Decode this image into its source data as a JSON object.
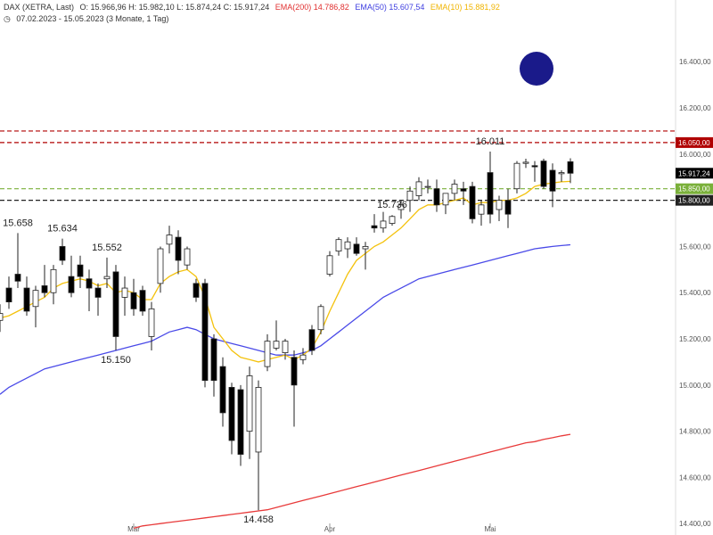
{
  "header": {
    "line1_symbol": "DAX (XETRA, Last)",
    "line1_ohlc": "O: 15.966,96  H: 15.982,10  L: 15.874,24  C: 15.917,24",
    "ema200_label": "EMA(200)  14.786,82",
    "ema50_label": "EMA(50)  15.607,54",
    "ema10_label": "EMA(10)  15.881,92",
    "line2": "07.02.2023 - 15.05.2023  (3 Monate, 1 Tag)"
  },
  "colors": {
    "up": "#ffffff",
    "down": "#000000",
    "ema200": "#e83a3a",
    "ema50": "#4a4ae8",
    "ema10": "#f4c20d",
    "resist1": "#b00000",
    "resist2": "#b00000",
    "support_green": "#7ab03a",
    "support_black": "#222222",
    "marker": "#1a1a8a"
  },
  "chart_data": {
    "type": "candlestick",
    "ylim": [
      14380,
      16460
    ],
    "yticks": [
      "16.400,00",
      "16.200,00",
      "16.000,00",
      "15.800,00",
      "15.600,00",
      "15.400,00",
      "15.200,00",
      "15.000,00",
      "14.800,00",
      "14.600,00",
      "14.400,00"
    ],
    "ytick_values": [
      16400,
      16200,
      16000,
      15800,
      15600,
      15400,
      15200,
      15000,
      14800,
      14600,
      14400
    ],
    "x_month_labels": [
      {
        "label": "Mär",
        "index": 15
      },
      {
        "label": "Apr",
        "index": 37
      },
      {
        "label": "Mai",
        "index": 55
      }
    ],
    "candles": [
      {
        "o": 15280,
        "h": 15350,
        "l": 15230,
        "c": 15310
      },
      {
        "o": 15420,
        "h": 15470,
        "l": 15330,
        "c": 15360
      },
      {
        "o": 15480,
        "h": 15658,
        "l": 15420,
        "c": 15450
      },
      {
        "o": 15420,
        "h": 15470,
        "l": 15300,
        "c": 15320
      },
      {
        "o": 15340,
        "h": 15430,
        "l": 15250,
        "c": 15410
      },
      {
        "o": 15430,
        "h": 15520,
        "l": 15380,
        "c": 15400
      },
      {
        "o": 15400,
        "h": 15520,
        "l": 15350,
        "c": 15500
      },
      {
        "o": 15600,
        "h": 15634,
        "l": 15520,
        "c": 15540
      },
      {
        "o": 15470,
        "h": 15560,
        "l": 15380,
        "c": 15400
      },
      {
        "o": 15520,
        "h": 15560,
        "l": 15420,
        "c": 15470
      },
      {
        "o": 15460,
        "h": 15500,
        "l": 15320,
        "c": 15420
      },
      {
        "o": 15420,
        "h": 15440,
        "l": 15300,
        "c": 15380
      },
      {
        "o": 15460,
        "h": 15552,
        "l": 15420,
        "c": 15470
      },
      {
        "o": 15490,
        "h": 15520,
        "l": 15150,
        "c": 15210
      },
      {
        "o": 15380,
        "h": 15470,
        "l": 15300,
        "c": 15420
      },
      {
        "o": 15400,
        "h": 15460,
        "l": 15300,
        "c": 15330
      },
      {
        "o": 15410,
        "h": 15430,
        "l": 15300,
        "c": 15320
      },
      {
        "o": 15210,
        "h": 15360,
        "l": 15150,
        "c": 15330
      },
      {
        "o": 15440,
        "h": 15600,
        "l": 15400,
        "c": 15590
      },
      {
        "o": 15610,
        "h": 15690,
        "l": 15570,
        "c": 15650
      },
      {
        "o": 15640,
        "h": 15670,
        "l": 15480,
        "c": 15540
      },
      {
        "o": 15520,
        "h": 15600,
        "l": 15500,
        "c": 15590
      },
      {
        "o": 15440,
        "h": 15460,
        "l": 15360,
        "c": 15380
      },
      {
        "o": 15440,
        "h": 15460,
        "l": 14990,
        "c": 15020
      },
      {
        "o": 15200,
        "h": 15220,
        "l": 14950,
        "c": 15020
      },
      {
        "o": 15080,
        "h": 15120,
        "l": 14820,
        "c": 14880
      },
      {
        "o": 14990,
        "h": 15010,
        "l": 14700,
        "c": 14760
      },
      {
        "o": 14980,
        "h": 15000,
        "l": 14650,
        "c": 14700
      },
      {
        "o": 14800,
        "h": 15080,
        "l": 14680,
        "c": 15040
      },
      {
        "o": 14710,
        "h": 15020,
        "l": 14458,
        "c": 14990
      },
      {
        "o": 15080,
        "h": 15220,
        "l": 15060,
        "c": 15190
      },
      {
        "o": 15160,
        "h": 15280,
        "l": 15150,
        "c": 15190
      },
      {
        "o": 15140,
        "h": 15200,
        "l": 15110,
        "c": 15190
      },
      {
        "o": 15120,
        "h": 15150,
        "l": 14820,
        "c": 15000
      },
      {
        "o": 15110,
        "h": 15160,
        "l": 15090,
        "c": 15130
      },
      {
        "o": 15240,
        "h": 15260,
        "l": 15130,
        "c": 15150
      },
      {
        "o": 15240,
        "h": 15350,
        "l": 15220,
        "c": 15340
      },
      {
        "o": 15480,
        "h": 15580,
        "l": 15470,
        "c": 15560
      },
      {
        "o": 15580,
        "h": 15640,
        "l": 15560,
        "c": 15630
      },
      {
        "o": 15590,
        "h": 15640,
        "l": 15550,
        "c": 15620
      },
      {
        "o": 15610,
        "h": 15640,
        "l": 15560,
        "c": 15570
      },
      {
        "o": 15590,
        "h": 15620,
        "l": 15500,
        "c": 15600
      },
      {
        "o": 15690,
        "h": 15740,
        "l": 15660,
        "c": 15680
      },
      {
        "o": 15680,
        "h": 15750,
        "l": 15660,
        "c": 15710
      },
      {
        "o": 15700,
        "h": 15736,
        "l": 15690,
        "c": 15730
      },
      {
        "o": 15760,
        "h": 15800,
        "l": 15720,
        "c": 15780
      },
      {
        "o": 15800,
        "h": 15860,
        "l": 15750,
        "c": 15840
      },
      {
        "o": 15820,
        "h": 15900,
        "l": 15800,
        "c": 15880
      },
      {
        "o": 15860,
        "h": 15890,
        "l": 15830,
        "c": 15860
      },
      {
        "o": 15850,
        "h": 15890,
        "l": 15750,
        "c": 15780
      },
      {
        "o": 15780,
        "h": 15830,
        "l": 15740,
        "c": 15830
      },
      {
        "o": 15830,
        "h": 15890,
        "l": 15800,
        "c": 15870
      },
      {
        "o": 15850,
        "h": 15880,
        "l": 15780,
        "c": 15840
      },
      {
        "o": 15860,
        "h": 15880,
        "l": 15700,
        "c": 15720
      },
      {
        "o": 15740,
        "h": 15800,
        "l": 15690,
        "c": 15780
      },
      {
        "o": 15920,
        "h": 16011,
        "l": 15700,
        "c": 15740
      },
      {
        "o": 15760,
        "h": 15820,
        "l": 15710,
        "c": 15800
      },
      {
        "o": 15800,
        "h": 15850,
        "l": 15680,
        "c": 15740
      },
      {
        "o": 15850,
        "h": 15970,
        "l": 15830,
        "c": 15960
      },
      {
        "o": 15960,
        "h": 15980,
        "l": 15940,
        "c": 15965
      },
      {
        "o": 15950,
        "h": 15970,
        "l": 15880,
        "c": 15945
      },
      {
        "o": 15970,
        "h": 15980,
        "l": 15850,
        "c": 15860
      },
      {
        "o": 15930,
        "h": 15960,
        "l": 15770,
        "c": 15840
      },
      {
        "o": 15915,
        "h": 15930,
        "l": 15880,
        "c": 15920
      },
      {
        "o": 15966.96,
        "h": 15982.1,
        "l": 15874.24,
        "c": 15917.24
      }
    ],
    "ema10": [
      15290,
      15300,
      15320,
      15340,
      15360,
      15380,
      15420,
      15440,
      15450,
      15460,
      15450,
      15430,
      15440,
      15400,
      15410,
      15400,
      15370,
      15370,
      15440,
      15470,
      15490,
      15500,
      15470,
      15380,
      15250,
      15200,
      15150,
      15120,
      15110,
      15100,
      15110,
      15120,
      15130,
      15110,
      15130,
      15160,
      15230,
      15320,
      15400,
      15480,
      15540,
      15570,
      15600,
      15620,
      15650,
      15680,
      15720,
      15760,
      15780,
      15780,
      15790,
      15800,
      15810,
      15780,
      15790,
      15790,
      15800,
      15800,
      15810,
      15830,
      15860,
      15870,
      15875,
      15880,
      15881.92
    ],
    "ema50": [
      14960,
      14990,
      15010,
      15030,
      15050,
      15070,
      15080,
      15090,
      15100,
      15110,
      15120,
      15130,
      15140,
      15150,
      15160,
      15170,
      15180,
      15190,
      15210,
      15230,
      15240,
      15250,
      15240,
      15220,
      15200,
      15190,
      15180,
      15170,
      15160,
      15150,
      15140,
      15130,
      15130,
      15130,
      15140,
      15150,
      15170,
      15200,
      15230,
      15260,
      15290,
      15320,
      15350,
      15380,
      15400,
      15420,
      15440,
      15460,
      15470,
      15480,
      15490,
      15500,
      15510,
      15520,
      15530,
      15540,
      15550,
      15560,
      15570,
      15580,
      15590,
      15595,
      15600,
      15604,
      15607.54
    ],
    "ema200": [
      null,
      null,
      null,
      null,
      null,
      null,
      null,
      null,
      null,
      null,
      null,
      null,
      null,
      null,
      null,
      14380,
      14390,
      14395,
      14400,
      14405,
      14410,
      14415,
      14420,
      14425,
      14430,
      14435,
      14440,
      14445,
      14450,
      14455,
      14460,
      14470,
      14480,
      14490,
      14500,
      14510,
      14520,
      14530,
      14540,
      14550,
      14560,
      14570,
      14580,
      14590,
      14600,
      14610,
      14620,
      14630,
      14640,
      14650,
      14660,
      14670,
      14680,
      14690,
      14700,
      14710,
      14720,
      14730,
      14740,
      14750,
      14755,
      14765,
      14772,
      14780,
      14786.82
    ],
    "hlines": [
      {
        "value": 16100,
        "color": "#b00000",
        "label": ""
      },
      {
        "value": 16050,
        "color": "#b00000",
        "label": "16.050,00"
      },
      {
        "value": 15917.24,
        "color": "#000000",
        "label": "15.917,24",
        "nolines": true
      },
      {
        "value": 15850,
        "color": "#7ab03a",
        "label": "15.850,00"
      },
      {
        "value": 15800,
        "color": "#222222",
        "label": "15.800,00"
      }
    ],
    "annotations": [
      {
        "text": "15.658",
        "index": 2,
        "value": 15658,
        "pos": "above"
      },
      {
        "text": "15.634",
        "index": 7,
        "value": 15634,
        "pos": "above"
      },
      {
        "text": "15.552",
        "index": 12,
        "value": 15552,
        "pos": "above"
      },
      {
        "text": "15.150",
        "index": 13,
        "value": 15150,
        "pos": "below"
      },
      {
        "text": "14.458",
        "index": 29,
        "value": 14458,
        "pos": "below"
      },
      {
        "text": "15.736",
        "index": 44,
        "value": 15736,
        "pos": "above"
      },
      {
        "text": "16.011",
        "index": 55,
        "value": 16011,
        "pos": "above"
      }
    ]
  }
}
